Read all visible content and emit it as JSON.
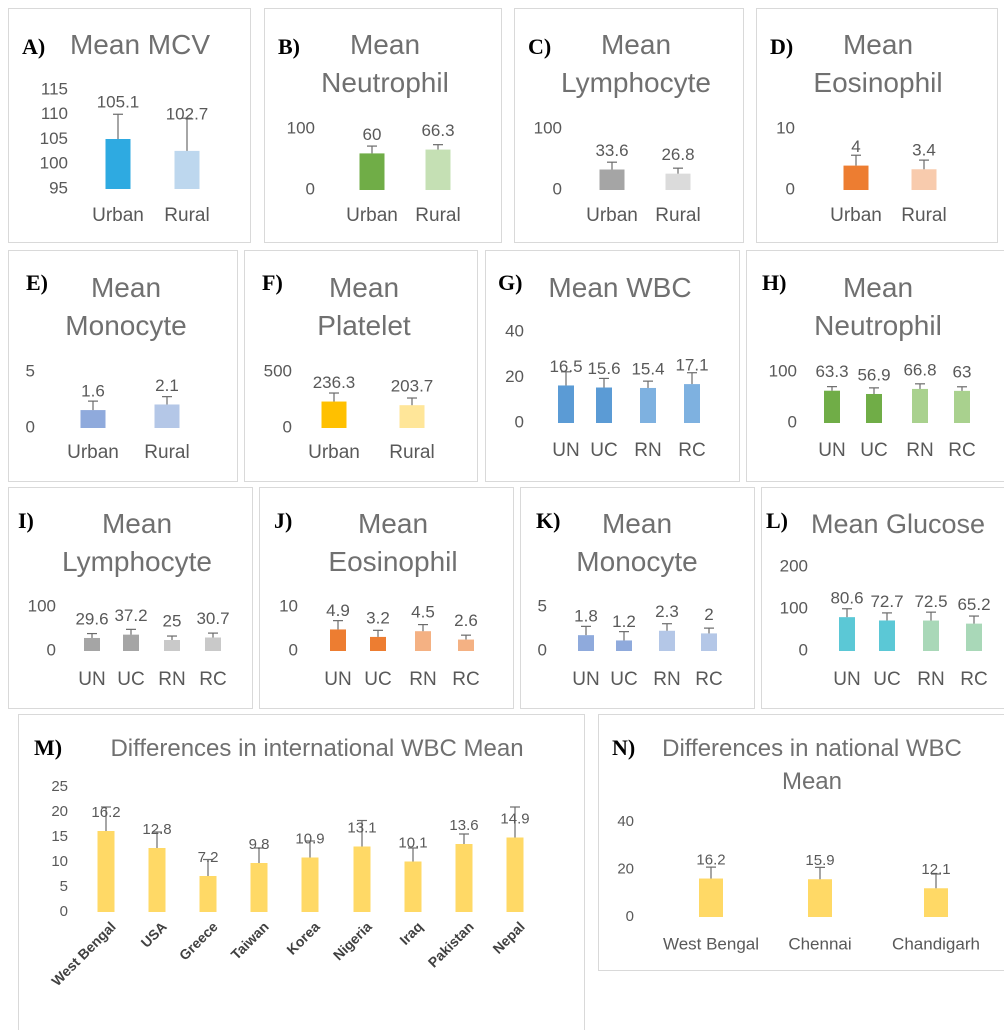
{
  "chart_data": [
    {
      "type": "bar",
      "label": "A)",
      "title": "Mean MCV",
      "categories": [
        "Urban",
        "Rural"
      ],
      "values": [
        105.1,
        102.7
      ],
      "errors": [
        5,
        6.6
      ],
      "colors": [
        "#2eaae1",
        "#bdd7ee"
      ],
      "ylim": [
        95,
        115
      ],
      "yticks": [
        95,
        100,
        105,
        110,
        115
      ]
    },
    {
      "type": "bar",
      "label": "B)",
      "title": "Mean Neutrophil",
      "categories": [
        "Urban",
        "Rural"
      ],
      "values": [
        60,
        66.3
      ],
      "errors": [
        12,
        8
      ],
      "colors": [
        "#70ad47",
        "#c5e0b4"
      ],
      "ylim": [
        0,
        100
      ],
      "yticks": [
        0,
        100
      ]
    },
    {
      "type": "bar",
      "label": "C)",
      "title": "Mean Lymphocyte",
      "categories": [
        "Urban",
        "Rural"
      ],
      "values": [
        33.6,
        26.8
      ],
      "errors": [
        12,
        9
      ],
      "colors": [
        "#a5a5a5",
        "#dbdbdb"
      ],
      "ylim": [
        0,
        100
      ],
      "yticks": [
        0,
        100
      ]
    },
    {
      "type": "bar",
      "label": "D)",
      "title": "Mean Eosinophil",
      "categories": [
        "Urban",
        "Rural"
      ],
      "values": [
        4,
        3.4
      ],
      "errors": [
        1.7,
        1.5
      ],
      "colors": [
        "#ed7d31",
        "#f8cbad"
      ],
      "ylim": [
        0,
        10
      ],
      "yticks": [
        0,
        10
      ]
    },
    {
      "type": "bar",
      "label": "E)",
      "title": "Mean Monocyte",
      "categories": [
        "Urban",
        "Rural"
      ],
      "values": [
        1.6,
        2.1
      ],
      "errors": [
        0.8,
        0.7
      ],
      "colors": [
        "#8faadc",
        "#b4c7e7"
      ],
      "ylim": [
        0,
        5
      ],
      "yticks": [
        0,
        5
      ]
    },
    {
      "type": "bar",
      "label": "F)",
      "title": "Mean Platelet",
      "categories": [
        "Urban",
        "Rural"
      ],
      "values": [
        236.3,
        203.7
      ],
      "errors": [
        76,
        64
      ],
      "colors": [
        "#ffc000",
        "#ffe699"
      ],
      "ylim": [
        0,
        500
      ],
      "yticks": [
        0,
        500
      ]
    },
    {
      "type": "bar",
      "label": "G)",
      "title": "Mean WBC",
      "categories": [
        "UN",
        "UC",
        "RN",
        "RC"
      ],
      "values": [
        16.5,
        15.6,
        15.4,
        17.1
      ],
      "errors": [
        6,
        4,
        3,
        5
      ],
      "colors": [
        "#5b9bd5",
        "#5b9bd5",
        "#7eb1e0",
        "#7eb1e0"
      ],
      "ylim": [
        0,
        40
      ],
      "yticks": [
        0,
        20,
        40
      ]
    },
    {
      "type": "bar",
      "label": "H)",
      "title": "Mean Neutrophil",
      "categories": [
        "UN",
        "UC",
        "RN",
        "RC"
      ],
      "values": [
        63.3,
        56.9,
        66.8,
        63
      ],
      "errors": [
        8,
        12,
        10,
        8
      ],
      "colors": [
        "#70ad47",
        "#70ad47",
        "#a9d18e",
        "#a9d18e"
      ],
      "ylim": [
        0,
        100
      ],
      "yticks": [
        0,
        100
      ]
    },
    {
      "type": "bar",
      "label": "I)",
      "title": "Mean Lymphocyte",
      "categories": [
        "UN",
        "UC",
        "RN",
        "RC"
      ],
      "values": [
        29.6,
        37.2,
        25,
        30.7
      ],
      "errors": [
        10,
        12,
        9,
        10
      ],
      "colors": [
        "#a5a5a5",
        "#a5a5a5",
        "#c9c9c9",
        "#c9c9c9"
      ],
      "ylim": [
        0,
        100
      ],
      "yticks": [
        0,
        100
      ]
    },
    {
      "type": "bar",
      "label": "J)",
      "title": "Mean Eosinophil",
      "categories": [
        "UN",
        "UC",
        "RN",
        "RC"
      ],
      "values": [
        4.9,
        3.2,
        4.5,
        2.6
      ],
      "errors": [
        2,
        1.5,
        1.5,
        1
      ],
      "colors": [
        "#ed7d31",
        "#ed7d31",
        "#f4b183",
        "#f4b183"
      ],
      "ylim": [
        0,
        10
      ],
      "yticks": [
        0,
        10
      ]
    },
    {
      "type": "bar",
      "label": "K)",
      "title": "Mean Monocyte",
      "categories": [
        "UN",
        "UC",
        "RN",
        "RC"
      ],
      "values": [
        1.8,
        1.2,
        2.3,
        2
      ],
      "errors": [
        1,
        1,
        0.8,
        0.6
      ],
      "colors": [
        "#8faadc",
        "#8faadc",
        "#b4c7e7",
        "#b4c7e7"
      ],
      "ylim": [
        0,
        5
      ],
      "yticks": [
        0,
        5
      ]
    },
    {
      "type": "bar",
      "label": "L)",
      "title": "Mean Glucose",
      "categories": [
        "UN",
        "UC",
        "RN",
        "RC"
      ],
      "values": [
        80.6,
        72.7,
        72.5,
        65.2
      ],
      "errors": [
        20,
        18,
        20,
        18
      ],
      "colors": [
        "#5bc8d6",
        "#5bc8d6",
        "#a9d8b8",
        "#a9d8b8"
      ],
      "ylim": [
        0,
        200
      ],
      "yticks": [
        0,
        100,
        200
      ]
    },
    {
      "type": "bar",
      "label": "M)",
      "title": "Differences in international WBC Mean",
      "categories": [
        "West Bengal",
        "USA",
        "Greece",
        "Taiwan",
        "Korea",
        "Nigeria",
        "Iraq",
        "Pakistan",
        "Nepal"
      ],
      "values": [
        16.2,
        12.8,
        7.2,
        9.8,
        10.9,
        13.1,
        10.1,
        13.6,
        14.9
      ],
      "errors": [
        4.8,
        3.2,
        3.3,
        3,
        3.3,
        5.2,
        2.7,
        2,
        6.1
      ],
      "colors": [
        "#ffd966",
        "#ffd966",
        "#ffd966",
        "#ffd966",
        "#ffd966",
        "#ffd966",
        "#ffd966",
        "#ffd966",
        "#ffd966"
      ],
      "ylim": [
        0,
        25
      ],
      "yticks": [
        0,
        5,
        10,
        15,
        20,
        25
      ]
    },
    {
      "type": "bar",
      "label": "N)",
      "title": "Differences in national WBC Mean",
      "categories": [
        "West Bengal",
        "Chennai",
        "Chandigarh"
      ],
      "values": [
        16.2,
        15.9,
        12.1
      ],
      "errors": [
        4.8,
        5,
        6
      ],
      "colors": [
        "#ffd966",
        "#ffd966",
        "#ffd966"
      ],
      "ylim": [
        0,
        40
      ],
      "yticks": [
        0,
        20,
        40
      ]
    }
  ]
}
